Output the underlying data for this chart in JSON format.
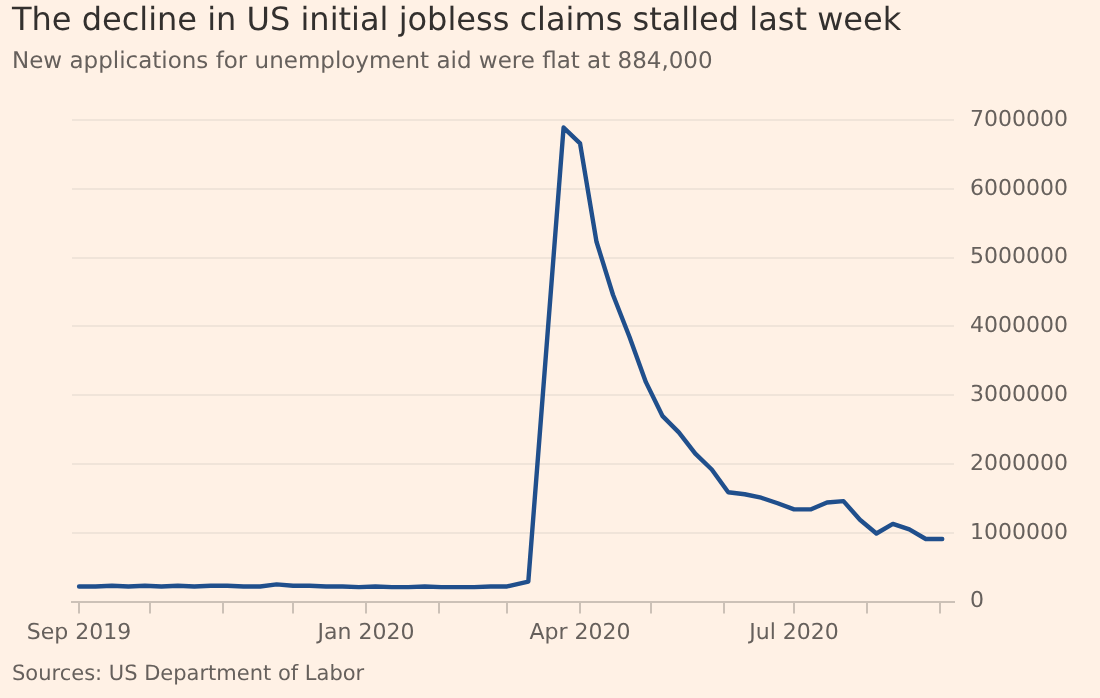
{
  "chart_data": {
    "type": "line",
    "title": "The decline in US initial jobless claims stalled last week",
    "subtitle": "New applications for unemployment aid were flat at 884,000",
    "annotations": [
      "Sources: US Department of Labor"
    ],
    "x": [
      "2019-09-01",
      "2019-09-08",
      "2019-09-15",
      "2019-09-22",
      "2019-09-29",
      "2019-10-06",
      "2019-10-13",
      "2019-10-20",
      "2019-10-27",
      "2019-11-03",
      "2019-11-10",
      "2019-11-17",
      "2019-11-24",
      "2019-12-01",
      "2019-12-08",
      "2019-12-15",
      "2019-12-22",
      "2019-12-29",
      "2020-01-05",
      "2020-01-12",
      "2020-01-19",
      "2020-01-26",
      "2020-02-02",
      "2020-02-09",
      "2020-02-16",
      "2020-02-23",
      "2020-03-01",
      "2020-03-10",
      "2020-03-25",
      "2020-04-01",
      "2020-04-08",
      "2020-04-15",
      "2020-04-22",
      "2020-04-29",
      "2020-05-06",
      "2020-05-13",
      "2020-05-20",
      "2020-05-27",
      "2020-06-03",
      "2020-06-10",
      "2020-06-17",
      "2020-06-24",
      "2020-07-01",
      "2020-07-08",
      "2020-07-15",
      "2020-07-22",
      "2020-07-29",
      "2020-08-05",
      "2020-08-12",
      "2020-08-19",
      "2020-08-26",
      "2020-09-02"
    ],
    "series": [
      {
        "color": "#204f8c",
        "values": [
          220000,
          220000,
          230000,
          220000,
          230000,
          220000,
          230000,
          220000,
          230000,
          230000,
          220000,
          220000,
          250000,
          230000,
          230000,
          220000,
          220000,
          210000,
          220000,
          210000,
          210000,
          220000,
          210000,
          210000,
          210000,
          220000,
          220000,
          290000,
          6890000,
          6660000,
          5230000,
          4460000,
          3850000,
          3190000,
          2700000,
          2460000,
          2150000,
          1920000,
          1590000,
          1560000,
          1510000,
          1430000,
          1340000,
          1340000,
          1440000,
          1460000,
          1190000,
          990000,
          1130000,
          1050000,
          910000,
          910000
        ]
      }
    ],
    "xlim": [
      "2019-08-29",
      "2020-09-07"
    ],
    "xticks": [
      {
        "value": "2019-09-01",
        "label": "Sep 2019"
      },
      {
        "value": "2019-10-01",
        "label": null
      },
      {
        "value": "2019-11-01",
        "label": null
      },
      {
        "value": "2019-12-01",
        "label": null
      },
      {
        "value": "2020-01-01",
        "label": "Jan 2020"
      },
      {
        "value": "2020-02-01",
        "label": null
      },
      {
        "value": "2020-03-01",
        "label": null
      },
      {
        "value": "2020-04-01",
        "label": "Apr 2020"
      },
      {
        "value": "2020-05-01",
        "label": null
      },
      {
        "value": "2020-06-01",
        "label": null
      },
      {
        "value": "2020-07-01",
        "label": "Jul 2020"
      },
      {
        "value": "2020-08-01",
        "label": null
      },
      {
        "value": "2020-09-01",
        "label": null
      }
    ],
    "ylim": [
      0,
      7000000
    ],
    "yticks": [
      0,
      1000000,
      2000000,
      3000000,
      4000000,
      5000000,
      6000000,
      7000000
    ],
    "grid": "y",
    "legend": false,
    "marker": "none",
    "line_style": "solid"
  }
}
